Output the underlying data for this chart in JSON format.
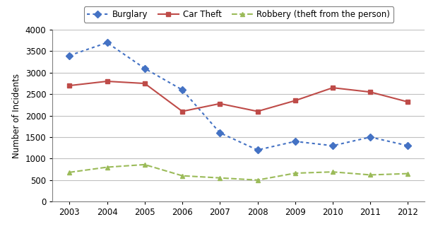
{
  "years": [
    2003,
    2004,
    2005,
    2006,
    2007,
    2008,
    2009,
    2010,
    2011,
    2012
  ],
  "burglary": [
    3400,
    3700,
    3100,
    2600,
    1600,
    1200,
    1400,
    1300,
    1500,
    1300
  ],
  "car_theft": [
    2700,
    2800,
    2750,
    2100,
    2280,
    2100,
    2350,
    2650,
    2550,
    2320
  ],
  "robbery": [
    680,
    800,
    860,
    600,
    550,
    500,
    660,
    690,
    620,
    650
  ],
  "burglary_color": "#4472C4",
  "car_theft_color": "#BE4B48",
  "robbery_color": "#9BBB59",
  "ylabel": "Number of Incidents",
  "ylim": [
    0,
    4000
  ],
  "yticks": [
    0,
    500,
    1000,
    1500,
    2000,
    2500,
    3000,
    3500,
    4000
  ],
  "legend_labels": [
    "Burglary",
    "Car Theft",
    "Robbery (theft from the person)"
  ],
  "background_color": "#ffffff",
  "grid_color": "#C0C0C0"
}
